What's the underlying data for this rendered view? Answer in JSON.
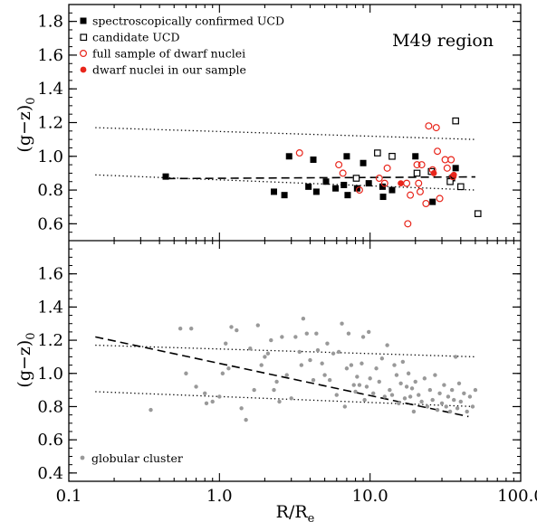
{
  "chart_data": [
    {
      "type": "scatter",
      "panel": "top",
      "region_label": "M49 region",
      "ylabel": "(g−z)",
      "ylabel_sub": "0",
      "xscale": "log",
      "xlim": [
        0.1,
        100.0
      ],
      "ylim": [
        0.5,
        1.9
      ],
      "yticks": [
        0.6,
        0.8,
        1.0,
        1.2,
        1.4,
        1.6,
        1.8
      ],
      "ytick_labels": [
        "0.6",
        "0.8",
        "1.0",
        "1.2",
        "1.4",
        "1.6",
        "1.8"
      ],
      "legend_position": "top-left",
      "series": [
        {
          "name": "spectroscopically confirmed UCD",
          "marker": "filled-square",
          "color": "#000000",
          "points": [
            [
              0.44,
              0.88
            ],
            [
              2.3,
              0.79
            ],
            [
              2.7,
              0.77
            ],
            [
              2.9,
              1.0
            ],
            [
              3.9,
              0.82
            ],
            [
              4.2,
              0.98
            ],
            [
              4.4,
              0.79
            ],
            [
              5.1,
              0.85
            ],
            [
              5.9,
              0.81
            ],
            [
              6.7,
              0.83
            ],
            [
              7.0,
              1.0
            ],
            [
              7.1,
              0.77
            ],
            [
              8.2,
              0.81
            ],
            [
              9.0,
              0.96
            ],
            [
              9.8,
              0.84
            ],
            [
              12.1,
              0.82
            ],
            [
              12.2,
              0.76
            ],
            [
              14.0,
              0.8
            ],
            [
              20.0,
              1.0
            ],
            [
              26.0,
              0.73
            ],
            [
              35.0,
              0.87
            ],
            [
              37.0,
              0.93
            ]
          ]
        },
        {
          "name": "candidate UCD",
          "marker": "open-square",
          "color": "#000000",
          "points": [
            [
              8.1,
              0.87
            ],
            [
              11.2,
              1.02
            ],
            [
              14.0,
              1.0
            ],
            [
              20.5,
              0.9
            ],
            [
              25.5,
              0.91
            ],
            [
              34.0,
              0.85
            ],
            [
              37.0,
              1.21
            ],
            [
              40.0,
              0.82
            ],
            [
              52.0,
              0.66
            ]
          ]
        },
        {
          "name": "full sample of dwarf nuclei",
          "marker": "open-circle",
          "color": "#e8251b",
          "points": [
            [
              3.4,
              1.02
            ],
            [
              6.2,
              0.95
            ],
            [
              6.6,
              0.9
            ],
            [
              8.5,
              0.8
            ],
            [
              11.5,
              0.87
            ],
            [
              12.5,
              0.84
            ],
            [
              13.0,
              0.93
            ],
            [
              17.5,
              0.84
            ],
            [
              17.8,
              0.6
            ],
            [
              18.5,
              0.77
            ],
            [
              20.5,
              0.95
            ],
            [
              21.0,
              0.84
            ],
            [
              21.5,
              0.79
            ],
            [
              22.0,
              0.95
            ],
            [
              23.5,
              0.72
            ],
            [
              24.5,
              1.18
            ],
            [
              26.0,
              0.92
            ],
            [
              27.5,
              1.17
            ],
            [
              28.0,
              1.03
            ],
            [
              29.0,
              0.75
            ],
            [
              31.5,
              0.98
            ],
            [
              32.5,
              0.93
            ],
            [
              34.5,
              0.98
            ],
            [
              35.5,
              0.88
            ]
          ]
        },
        {
          "name": "dwarf nuclei in our sample",
          "marker": "filled-circle",
          "color": "#e8251b",
          "points": [
            [
              16.0,
              0.84
            ],
            [
              26.5,
              0.9
            ],
            [
              36.0,
              0.89
            ]
          ]
        }
      ],
      "lines": [
        {
          "style": "dashed",
          "points": [
            [
              0.45,
              0.868
            ],
            [
              50.0,
              0.878
            ]
          ]
        },
        {
          "style": "dotted",
          "points": [
            [
              0.15,
              1.17
            ],
            [
              50.0,
              1.1
            ]
          ]
        },
        {
          "style": "dotted",
          "points": [
            [
              0.15,
              0.89
            ],
            [
              50.0,
              0.8
            ]
          ]
        }
      ]
    },
    {
      "type": "scatter",
      "panel": "bottom",
      "xlabel": "R/R",
      "xlabel_sub": "e",
      "ylabel": "(g−z)",
      "ylabel_sub": "0",
      "xscale": "log",
      "xlim": [
        0.1,
        100.0
      ],
      "ylim": [
        0.35,
        1.8
      ],
      "xticks": [
        0.1,
        1.0,
        10.0,
        100.0
      ],
      "xtick_labels": [
        "0.1",
        "1.0",
        "10.0",
        "100.0"
      ],
      "yticks": [
        0.4,
        0.6,
        0.8,
        1.0,
        1.2,
        1.4,
        1.6
      ],
      "ytick_labels": [
        "0.4",
        "0.6",
        "0.8",
        "1.0",
        "1.2",
        "1.4",
        "1.6"
      ],
      "legend_position": "bottom-left",
      "series": [
        {
          "name": "globular cluster",
          "marker": "filled-circle",
          "color": "#999999",
          "points": [
            [
              0.35,
              0.78
            ],
            [
              0.55,
              1.27
            ],
            [
              0.6,
              1.0
            ],
            [
              0.65,
              1.27
            ],
            [
              0.7,
              0.92
            ],
            [
              0.8,
              0.88
            ],
            [
              0.82,
              0.82
            ],
            [
              0.9,
              0.83
            ],
            [
              1.0,
              0.86
            ],
            [
              1.05,
              1.0
            ],
            [
              1.1,
              1.18
            ],
            [
              1.15,
              1.03
            ],
            [
              1.2,
              1.28
            ],
            [
              1.3,
              1.26
            ],
            [
              1.4,
              0.79
            ],
            [
              1.5,
              0.72
            ],
            [
              1.6,
              1.15
            ],
            [
              1.7,
              0.9
            ],
            [
              1.8,
              1.29
            ],
            [
              1.9,
              1.05
            ],
            [
              2.0,
              1.1
            ],
            [
              2.1,
              1.12
            ],
            [
              2.2,
              1.2
            ],
            [
              2.3,
              0.9
            ],
            [
              2.4,
              0.95
            ],
            [
              2.5,
              0.83
            ],
            [
              2.6,
              1.22
            ],
            [
              2.8,
              0.99
            ],
            [
              3.0,
              0.85
            ],
            [
              3.2,
              1.22
            ],
            [
              3.4,
              1.13
            ],
            [
              3.5,
              1.05
            ],
            [
              3.6,
              1.33
            ],
            [
              3.8,
              1.24
            ],
            [
              4.0,
              1.08
            ],
            [
              4.2,
              0.96
            ],
            [
              4.4,
              1.24
            ],
            [
              4.5,
              1.14
            ],
            [
              4.8,
              1.06
            ],
            [
              5.0,
              0.99
            ],
            [
              5.2,
              1.18
            ],
            [
              5.4,
              0.96
            ],
            [
              5.7,
              1.12
            ],
            [
              6.0,
              0.87
            ],
            [
              6.2,
              1.13
            ],
            [
              6.5,
              1.3
            ],
            [
              6.8,
              0.8
            ],
            [
              7.0,
              1.03
            ],
            [
              7.2,
              1.24
            ],
            [
              7.5,
              1.05
            ],
            [
              7.8,
              0.93
            ],
            [
              8.0,
              0.89
            ],
            [
              8.2,
              0.98
            ],
            [
              8.5,
              0.93
            ],
            [
              8.8,
              1.06
            ],
            [
              9.0,
              1.22
            ],
            [
              9.2,
              0.84
            ],
            [
              9.5,
              0.92
            ],
            [
              9.8,
              1.25
            ],
            [
              10.0,
              0.97
            ],
            [
              10.5,
              0.88
            ],
            [
              11.0,
              1.03
            ],
            [
              11.5,
              0.95
            ],
            [
              12.0,
              1.09
            ],
            [
              12.5,
              0.86
            ],
            [
              13.0,
              1.17
            ],
            [
              13.5,
              0.9
            ],
            [
              14.0,
              0.87
            ],
            [
              14.5,
              1.05
            ],
            [
              15.0,
              0.99
            ],
            [
              15.5,
              0.82
            ],
            [
              16.0,
              0.94
            ],
            [
              16.5,
              1.07
            ],
            [
              17.0,
              0.85
            ],
            [
              17.5,
              0.92
            ],
            [
              18.0,
              1.0
            ],
            [
              18.5,
              0.86
            ],
            [
              19.0,
              0.91
            ],
            [
              19.5,
              0.77
            ],
            [
              20.0,
              0.95
            ],
            [
              21.0,
              0.87
            ],
            [
              22.0,
              0.83
            ],
            [
              23.0,
              0.97
            ],
            [
              24.0,
              0.8
            ],
            [
              25.0,
              0.9
            ],
            [
              26.0,
              0.84
            ],
            [
              27.0,
              0.99
            ],
            [
              28.0,
              0.78
            ],
            [
              29.0,
              0.88
            ],
            [
              30.0,
              0.82
            ],
            [
              31.0,
              0.93
            ],
            [
              32.0,
              0.8
            ],
            [
              33.0,
              0.86
            ],
            [
              34.0,
              0.77
            ],
            [
              35.0,
              0.9
            ],
            [
              36.0,
              0.84
            ],
            [
              37.0,
              1.1
            ],
            [
              38.0,
              0.79
            ],
            [
              39.0,
              0.94
            ],
            [
              40.0,
              0.83
            ],
            [
              42.0,
              0.88
            ],
            [
              44.0,
              0.77
            ],
            [
              46.0,
              0.86
            ],
            [
              48.0,
              0.8
            ],
            [
              50.0,
              0.9
            ]
          ]
        }
      ],
      "lines": [
        {
          "style": "dashed",
          "points": [
            [
              0.15,
              1.22
            ],
            [
              45.0,
              0.74
            ]
          ]
        },
        {
          "style": "dotted",
          "points": [
            [
              0.15,
              1.17
            ],
            [
              50.0,
              1.1
            ]
          ]
        },
        {
          "style": "dotted",
          "points": [
            [
              0.15,
              0.89
            ],
            [
              50.0,
              0.8
            ]
          ]
        }
      ]
    }
  ]
}
